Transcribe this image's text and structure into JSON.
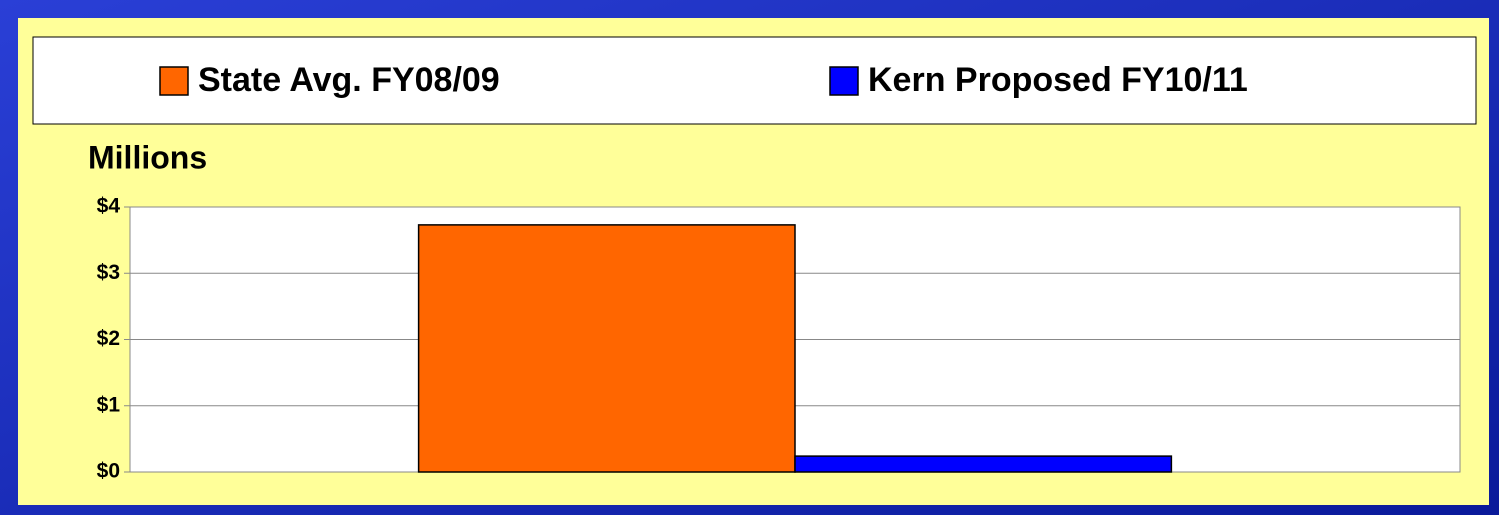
{
  "chart_data": {
    "type": "bar",
    "y_axis_label": "Millions",
    "categories": [
      null
    ],
    "series": [
      {
        "name": "State Avg. FY08/09",
        "color": "#ff6600",
        "values": [
          3.73
        ]
      },
      {
        "name": "Kern Proposed FY10/11",
        "color": "#0000ff",
        "values": [
          0.24
        ]
      }
    ],
    "ylim": [
      0,
      4
    ],
    "yticks": [
      {
        "value": 0,
        "label": "$0"
      },
      {
        "value": 1,
        "label": "$1"
      },
      {
        "value": 2,
        "label": "$2"
      },
      {
        "value": 3,
        "label": "$3"
      },
      {
        "value": 4,
        "label": "$4"
      }
    ],
    "grid": true
  }
}
